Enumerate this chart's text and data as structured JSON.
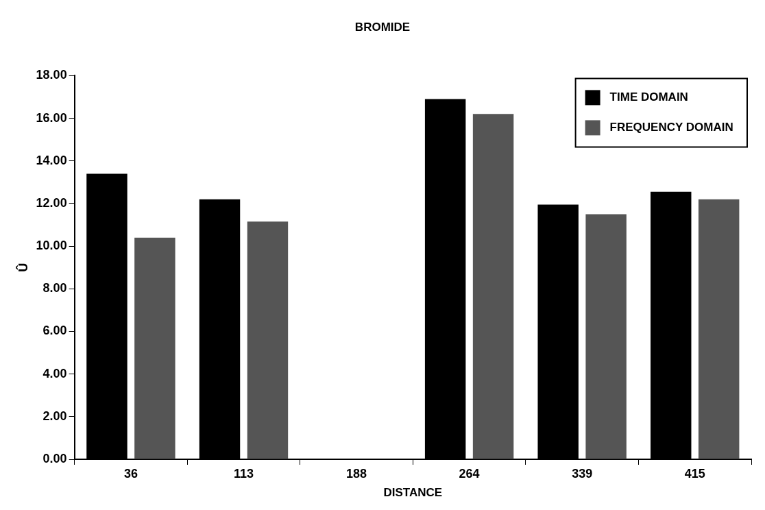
{
  "chart_data": {
    "type": "bar",
    "title": "BROMIDE",
    "xlabel": "DISTANCE",
    "ylabel": "Û",
    "categories": [
      "36",
      "113",
      "188",
      "264",
      "339",
      "415"
    ],
    "series": [
      {
        "name": "TIME DOMAIN",
        "color": "#000000",
        "values": [
          13.4,
          12.2,
          null,
          16.9,
          11.95,
          12.55
        ]
      },
      {
        "name": "FREQUENCY DOMAIN",
        "color": "#555555",
        "values": [
          10.4,
          11.15,
          null,
          16.2,
          11.5,
          12.2
        ]
      }
    ],
    "ylim": [
      0,
      18
    ],
    "yticks": [
      {
        "value": 0,
        "label": "0.00"
      },
      {
        "value": 2,
        "label": "2.00"
      },
      {
        "value": 4,
        "label": "4.00"
      },
      {
        "value": 6,
        "label": "6.00"
      },
      {
        "value": 8,
        "label": "8.00"
      },
      {
        "value": 10,
        "label": "10.00"
      },
      {
        "value": 12,
        "label": "12.00"
      },
      {
        "value": 14,
        "label": "14.00"
      },
      {
        "value": 16,
        "label": "16.00"
      },
      {
        "value": 18,
        "label": "18.00"
      }
    ],
    "grid": false,
    "legend": "top right"
  }
}
